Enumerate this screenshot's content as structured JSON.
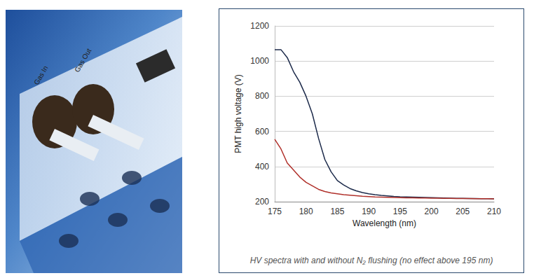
{
  "photo": {
    "labels": [
      "Gas In",
      "Gas Out"
    ]
  },
  "chart_data": {
    "type": "line",
    "title": "HV spectra with and without N₂ flushing (no effect above 195 nm)",
    "x_label": "Wavelength (nm)",
    "y_label": "PMT high voltage (V)",
    "x": [
      175,
      176,
      177,
      178,
      179,
      180,
      181,
      182,
      183,
      184,
      185,
      186,
      187,
      188,
      189,
      190,
      191,
      192,
      193,
      194,
      195,
      196,
      197,
      198,
      199,
      200,
      201,
      202,
      203,
      204,
      205,
      206,
      207,
      208,
      209,
      210
    ],
    "series": [
      {
        "color": "#1c2a4a",
        "values": [
          1065,
          1065,
          1020,
          940,
          880,
          800,
          700,
          560,
          440,
          370,
          320,
          295,
          275,
          262,
          252,
          245,
          240,
          236,
          233,
          230,
          228,
          227,
          226,
          225,
          224,
          223,
          222,
          221,
          220,
          219,
          219,
          218,
          218,
          217,
          217,
          216
        ]
      },
      {
        "color": "#b0302a",
        "values": [
          555,
          500,
          420,
          380,
          340,
          310,
          290,
          270,
          258,
          250,
          245,
          240,
          237,
          234,
          231,
          229,
          227,
          226,
          225,
          224,
          223,
          222,
          222,
          221,
          221,
          220,
          220,
          219,
          219,
          218,
          218,
          218,
          217,
          217,
          217,
          216
        ]
      }
    ],
    "xlim": [
      175,
      210
    ],
    "xticks": [
      175,
      180,
      185,
      190,
      195,
      200,
      205,
      210
    ],
    "ylim": [
      200,
      1200
    ],
    "yticks": [
      200,
      400,
      600,
      800,
      1000,
      1200
    ],
    "grid": true
  }
}
